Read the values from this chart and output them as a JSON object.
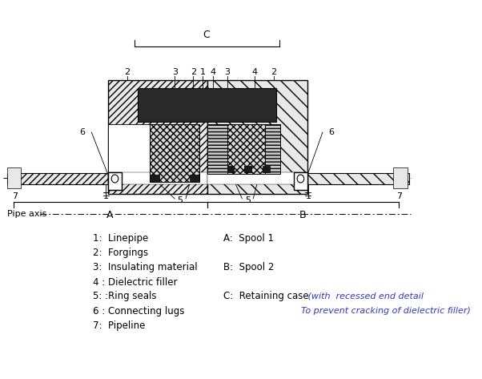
{
  "bg_color": "#ffffff",
  "black": "#000000",
  "blue_color": "#3333cc",
  "hatch_color": "#000000",
  "legend_left": [
    "1:  Linepipe",
    "2:  Forgings",
    "3:  Insulating material",
    "4 : Dielectric filler",
    "5: :Ring seals",
    "6 : Connecting lugs",
    "7:  Pipeline"
  ],
  "legend_right_black": [
    [
      "A:  Spool 1",
      0
    ],
    [
      "B:  Spool 2",
      2
    ],
    [
      "C:  Retaining case",
      4
    ]
  ],
  "blue_line1": " (with  recessed end detail",
  "blue_line2": "To prevent cracking of dielectric filler)",
  "pipe_axis_label": "Pipe axis",
  "label_A": "A",
  "label_B": "B",
  "label_C": "C"
}
